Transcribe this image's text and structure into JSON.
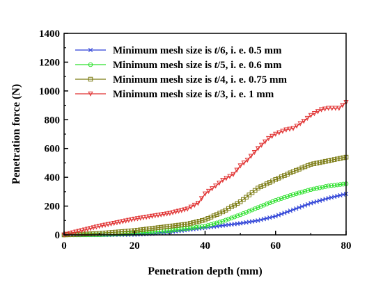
{
  "chart_data": {
    "type": "line",
    "title": "",
    "xlabel": "Penetration depth (mm)",
    "ylabel": "Penetration force (N)",
    "xlim": [
      0,
      80
    ],
    "ylim": [
      0,
      1400
    ],
    "xticks": [
      "0",
      "20",
      "40",
      "60",
      "80"
    ],
    "yticks": [
      "0",
      "200",
      "400",
      "600",
      "800",
      "1000",
      "1200",
      "1400"
    ],
    "grid": false,
    "legend_position": "top-left",
    "series": [
      {
        "name_parts": [
          "Minimum mesh size is ",
          "t",
          "/6, i. e. 0.5 mm"
        ],
        "color": "#2b3fd6",
        "marker": "x",
        "x": [
          0,
          10,
          20,
          25,
          30,
          35,
          40,
          45,
          50,
          55,
          60,
          65,
          70,
          75,
          80
        ],
        "y": [
          0,
          0,
          2,
          8,
          20,
          35,
          50,
          65,
          80,
          100,
          130,
          175,
          220,
          255,
          285
        ]
      },
      {
        "name_parts": [
          "Minimum mesh size is ",
          "t",
          "/5, i. e. 0.6 mm"
        ],
        "color": "#2fe02f",
        "marker": "circle",
        "x": [
          0,
          10,
          20,
          25,
          30,
          35,
          40,
          45,
          50,
          55,
          60,
          65,
          70,
          75,
          80
        ],
        "y": [
          0,
          1,
          10,
          20,
          30,
          45,
          60,
          95,
          140,
          190,
          240,
          280,
          315,
          340,
          355
        ]
      },
      {
        "name_parts": [
          "Minimum mesh size is ",
          "t",
          "/4, i. e. 0.75 mm"
        ],
        "color": "#7a7a10",
        "marker": "square",
        "x": [
          0,
          10,
          20,
          25,
          30,
          35,
          40,
          45,
          50,
          55,
          60,
          65,
          70,
          75,
          80
        ],
        "y": [
          0,
          10,
          30,
          45,
          60,
          75,
          105,
          160,
          230,
          325,
          385,
          440,
          490,
          515,
          540
        ]
      },
      {
        "name_parts": [
          "Minimum mesh size is ",
          "t",
          "/3, i. e. 1 mm"
        ],
        "color": "#e03030",
        "marker": "triangle-down",
        "x": [
          0,
          5,
          10,
          15,
          20,
          25,
          30,
          35,
          38,
          40,
          43,
          45,
          48,
          50,
          52,
          55,
          58,
          60,
          63,
          65,
          68,
          70,
          73,
          75,
          78,
          80
        ],
        "y": [
          0,
          30,
          60,
          85,
          110,
          130,
          150,
          180,
          220,
          285,
          340,
          380,
          420,
          480,
          520,
          600,
          670,
          700,
          730,
          740,
          790,
          830,
          870,
          880,
          880,
          920
        ]
      }
    ]
  }
}
